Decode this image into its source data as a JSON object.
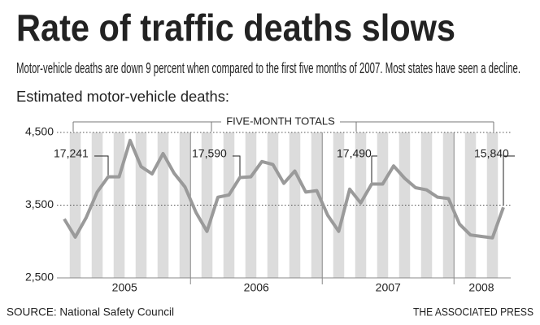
{
  "chart_data": {
    "type": "line",
    "title": "Rate of traffic deaths slows",
    "subtitle": "Motor-vehicle deaths are down 9 percent when compared to the first five months of 2007. Most states have seen a decline.",
    "y_label": "Estimated motor-vehicle deaths:",
    "bracket_label": "FIVE-MONTH TOTALS",
    "years": [
      "2005",
      "2006",
      "2007",
      "2008"
    ],
    "values": [
      3310,
      3060,
      3330,
      3680,
      3890,
      3890,
      4390,
      4030,
      3930,
      4210,
      3940,
      3750,
      3400,
      3140,
      3610,
      3640,
      3880,
      3890,
      4100,
      4060,
      3800,
      3970,
      3680,
      3700,
      3360,
      3140,
      3720,
      3530,
      3790,
      3790,
      4040,
      3870,
      3740,
      3710,
      3610,
      3590,
      3240,
      3090,
      3070,
      3050,
      3470
    ],
    "color": "#9a9a9a",
    "totals": [
      {
        "value": 17241,
        "label": "17,241"
      },
      {
        "value": 17590,
        "label": "17,590"
      },
      {
        "value": 17490,
        "label": "17,490"
      },
      {
        "value": 15840,
        "label": "15,840"
      }
    ],
    "ylim": [
      2500,
      4500
    ],
    "yticks": [
      {
        "value": 2500,
        "label": "2,500"
      },
      {
        "value": 3500,
        "label": "3,500"
      },
      {
        "value": 4500,
        "label": "4,500"
      }
    ],
    "grid": true,
    "source": "SOURCE: National Safety Council",
    "credit": "THE ASSOCIATED PRESS"
  }
}
